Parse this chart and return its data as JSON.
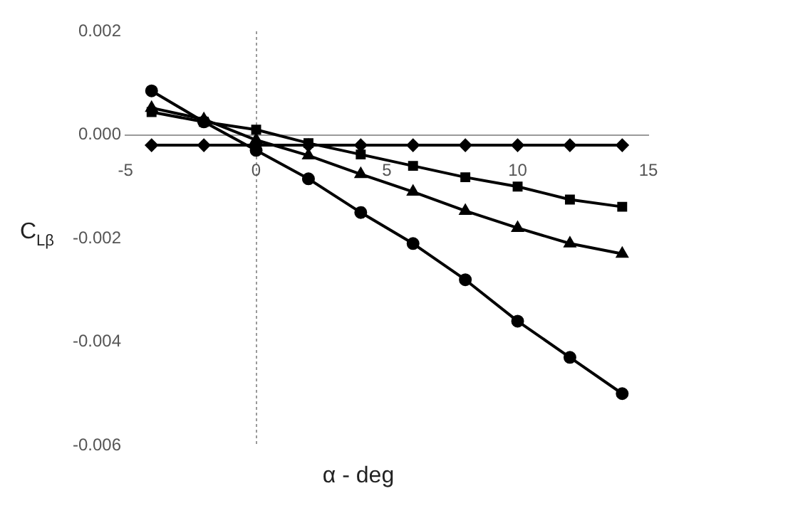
{
  "chart_data": {
    "type": "line",
    "xlabel": "α - deg",
    "ylabel": "C$_{Lβ}$",
    "x": [
      -4,
      -2,
      0,
      2,
      4,
      6,
      8,
      10,
      12,
      14
    ],
    "xlim": [
      -5,
      15
    ],
    "xticks": [
      -5,
      0,
      5,
      10,
      15
    ],
    "ylim": [
      -0.006,
      0.002
    ],
    "yticks": [
      -0.006,
      -0.004,
      -0.002,
      {
        "value": 0,
        "label": "0.000"
      },
      0.002
    ],
    "series": [
      {
        "color": "#000000",
        "marker": "diamond",
        "values": [
          -0.0002,
          -0.0002,
          -0.0002,
          -0.0002,
          -0.0002,
          -0.0002,
          -0.0002,
          -0.0002,
          -0.0002,
          -0.0002
        ]
      },
      {
        "color": "#000000",
        "marker": "square",
        "values": [
          0.00044,
          0.00025,
          0.0001,
          -0.00016,
          -0.00038,
          -0.0006,
          -0.00082,
          -0.001,
          -0.00125,
          -0.00139
        ]
      },
      {
        "color": "#000000",
        "marker": "triangle",
        "values": [
          0.00052,
          0.0003,
          -0.0001,
          -0.0004,
          -0.00076,
          -0.0011,
          -0.00147,
          -0.0018,
          -0.0021,
          -0.0023
        ]
      },
      {
        "color": "#000000",
        "marker": "circle",
        "values": [
          0.00085,
          0.00025,
          -0.0003,
          -0.00085,
          -0.0015,
          -0.0021,
          -0.0028,
          -0.0036,
          -0.0043,
          -0.005
        ]
      }
    ]
  }
}
